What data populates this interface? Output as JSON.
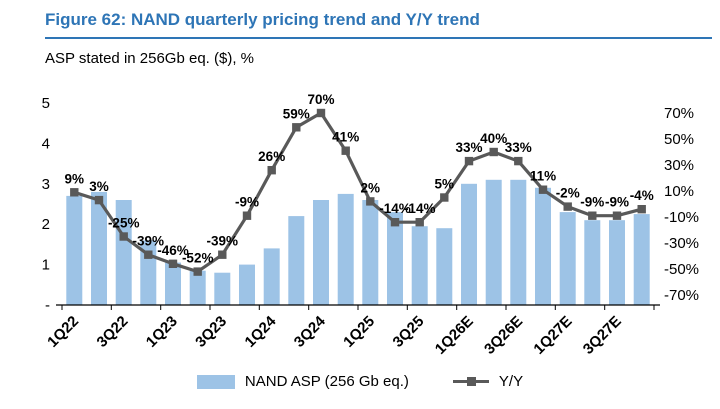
{
  "figure": {
    "title": "Figure 62: NAND quarterly pricing trend and Y/Y trend",
    "subtitle": "ASP stated in 256Gb eq. ($), %"
  },
  "chart_data": {
    "type": "bar",
    "subtype": "combo bar + line, dual axis",
    "categories": [
      "1Q22",
      "2Q22",
      "3Q22",
      "4Q22",
      "1Q23",
      "2Q23",
      "3Q23",
      "4Q23",
      "1Q24",
      "2Q24",
      "3Q24",
      "4Q24",
      "1Q25",
      "2Q25",
      "3Q25",
      "4Q25",
      "1Q26E",
      "2Q26E",
      "3Q26E",
      "4Q26E",
      "1Q27E",
      "2Q27E",
      "3Q27E",
      "4Q27E"
    ],
    "x_tick_labels": [
      "1Q22",
      "3Q22",
      "1Q23",
      "3Q23",
      "1Q24",
      "3Q24",
      "1Q25",
      "3Q25",
      "1Q26E",
      "3Q26E",
      "1Q27E",
      "3Q27E"
    ],
    "series": [
      {
        "name": "NAND ASP (256 Gb eq.)",
        "type": "bar",
        "axis": "left",
        "color": "#9DC3E6",
        "values": [
          2.7,
          2.8,
          2.6,
          1.6,
          1.05,
          0.85,
          0.8,
          1.0,
          1.4,
          2.2,
          2.6,
          2.75,
          2.6,
          2.3,
          1.95,
          1.9,
          3.0,
          3.1,
          3.1,
          2.9,
          2.3,
          2.1,
          2.1,
          2.25
        ]
      },
      {
        "name": "Y/Y",
        "type": "line",
        "axis": "right",
        "color": "#595959",
        "values": [
          9,
          3,
          -25,
          -39,
          -46,
          -52,
          -39,
          -9,
          26,
          59,
          70,
          41,
          2,
          -14,
          -14,
          5,
          33,
          40,
          33,
          11,
          -2,
          -9,
          -9,
          -4
        ],
        "labels": [
          "9%",
          "3%",
          "-25%",
          "-39%",
          "-46%",
          "-52%",
          "-39%",
          "-9%",
          "26%",
          "59%",
          "70%",
          "41%",
          "2%",
          "-14%",
          "-14%",
          "5%",
          "33%",
          "40%",
          "33%",
          "11%",
          "-2%",
          "-9%",
          "-9%",
          "-4%"
        ]
      }
    ],
    "left_axis": {
      "min": 0,
      "max": 5,
      "ticks": [
        "5",
        "4",
        "3",
        "2",
        "1",
        "-"
      ]
    },
    "right_axis": {
      "min": -70,
      "max": 70,
      "ticks": [
        "70%",
        "50%",
        "30%",
        "10%",
        "-10%",
        "-30%",
        "-50%",
        "-70%"
      ]
    },
    "legend": [
      {
        "label": "NAND ASP (256 Gb eq.)"
      },
      {
        "label": "Y/Y"
      }
    ],
    "layout": {
      "grid": false,
      "legend_position": "bottom-center",
      "x_label_rotation": -45
    },
    "colors": {
      "title": "#2E75B6",
      "bar": "#9DC3E6",
      "line": "#595959"
    }
  }
}
